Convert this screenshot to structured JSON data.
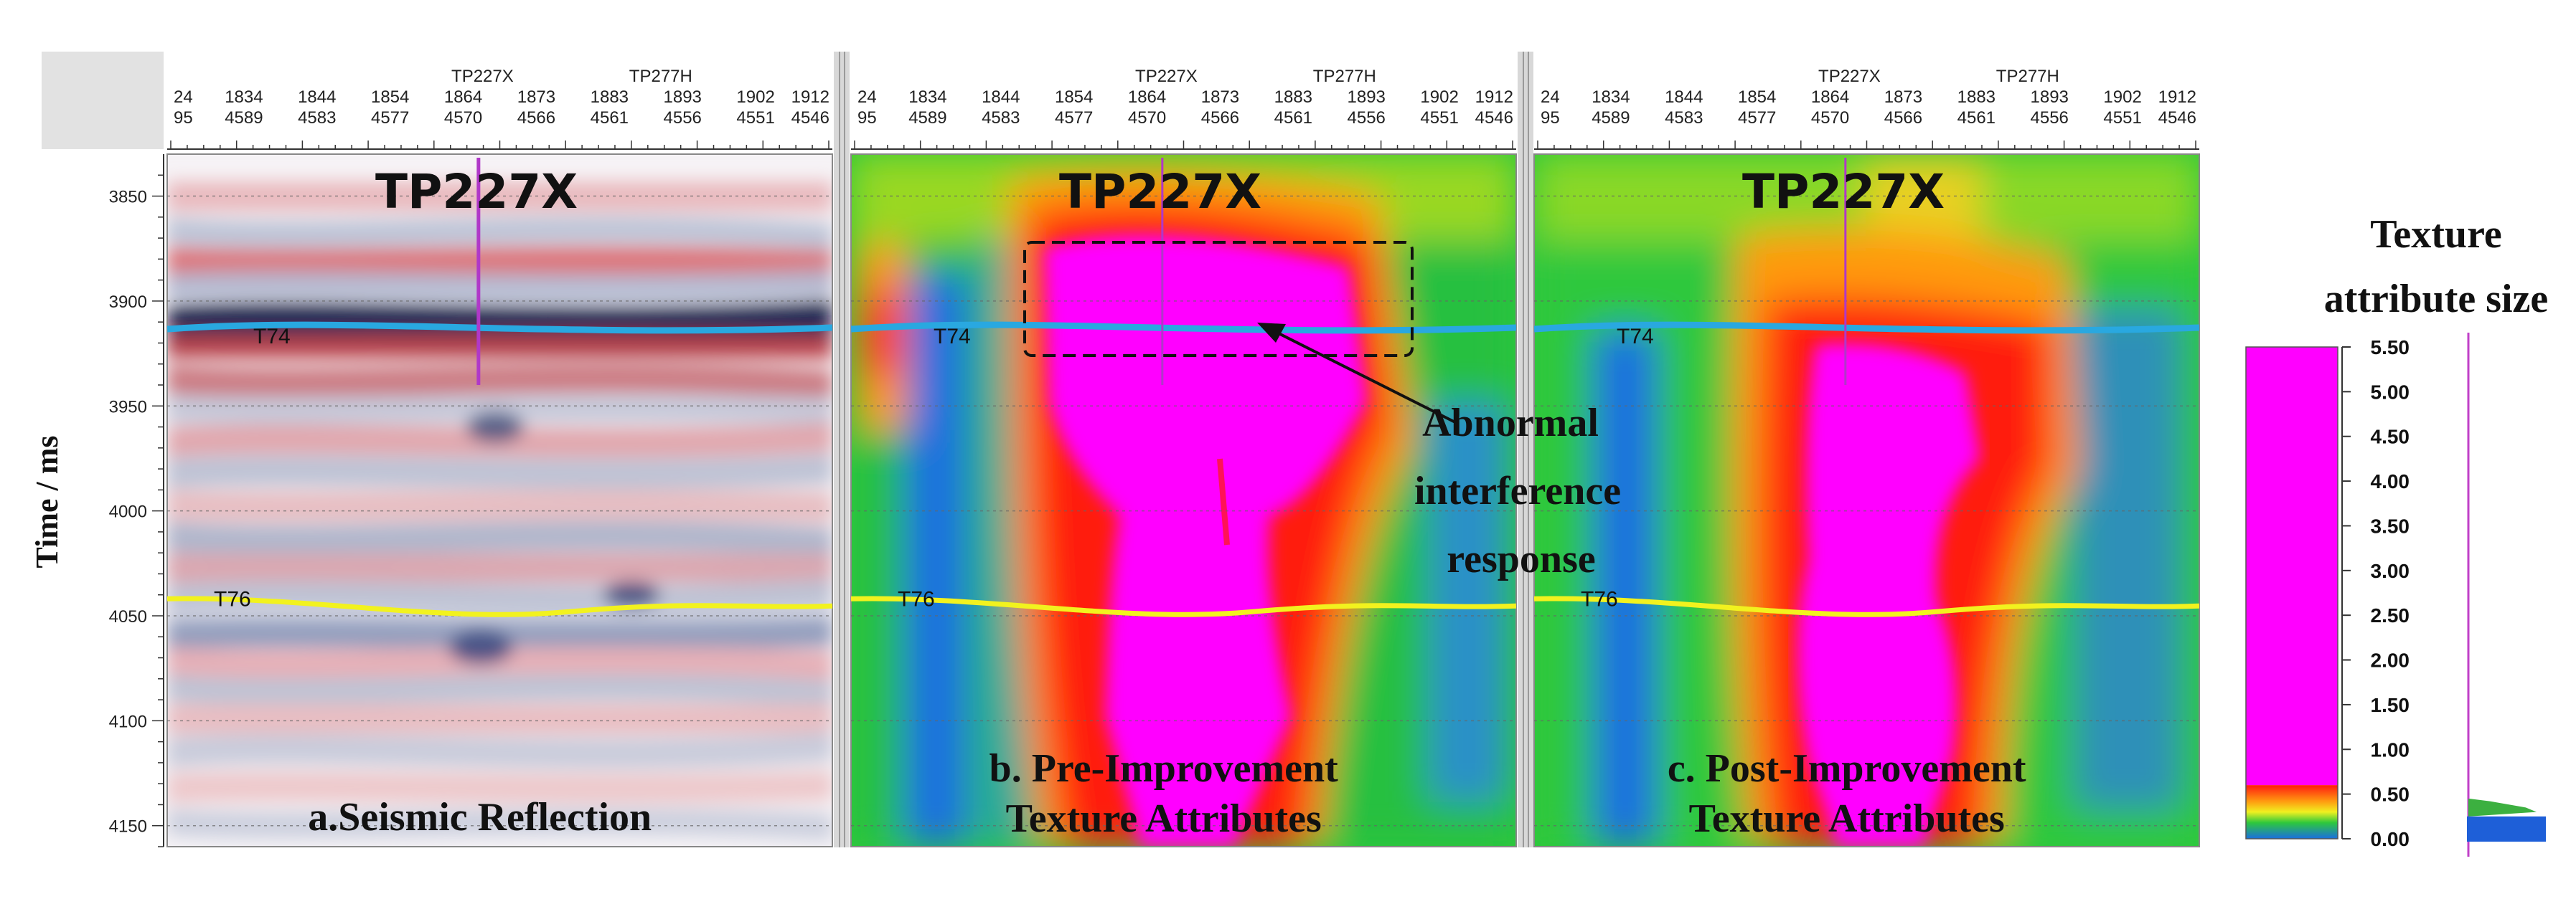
{
  "chart_data": {
    "type": "heatmap",
    "ylabel": "Time / ms",
    "ylim": [
      3830,
      4160
    ],
    "yticks": [
      3850,
      3900,
      3950,
      4000,
      4050,
      4100,
      4150
    ],
    "xticks": [
      {
        "top": "24",
        "bottom": "95"
      },
      {
        "top": "1834",
        "bottom": "4589"
      },
      {
        "top": "1844",
        "bottom": "4583"
      },
      {
        "top": "1854",
        "bottom": "4577"
      },
      {
        "top": "1864",
        "bottom": "4570"
      },
      {
        "top": "1873",
        "bottom": "4566"
      },
      {
        "top": "1883",
        "bottom": "4561"
      },
      {
        "top": "1893",
        "bottom": "4556"
      },
      {
        "top": "1902",
        "bottom": "4551"
      },
      {
        "top": "1912",
        "bottom": "4546"
      }
    ],
    "well_labels": [
      "TP227X",
      "TP277H"
    ],
    "well_name": "TP227X",
    "horizons": [
      {
        "name": "T74",
        "color": "#29a8e0"
      },
      {
        "name": "T76",
        "color": "#f2f21e"
      }
    ],
    "panels": [
      {
        "id": "a",
        "caption": [
          "a.Seismic Reflection"
        ],
        "kind": "seismic"
      },
      {
        "id": "b",
        "caption": [
          "b. Pre-Improvement",
          "Texture Attributes"
        ],
        "kind": "texture-pre"
      },
      {
        "id": "c",
        "caption": [
          "c. Post-Improvement",
          "Texture Attributes"
        ],
        "kind": "texture-post"
      }
    ],
    "annotation": {
      "lines": [
        "Abnormal",
        "interference",
        "response"
      ]
    },
    "colorbar": {
      "title": [
        "Texture",
        "attribute size"
      ],
      "ticks": [
        "5.50",
        "5.00",
        "4.50",
        "4.00",
        "3.50",
        "3.00",
        "2.50",
        "2.00",
        "1.50",
        "1.00",
        "0.50",
        "0.00"
      ],
      "range": [
        0,
        5.5
      ],
      "colors": {
        "magenta": "#ff00ff",
        "red": "#ff1a10",
        "orange": "#ff9a10",
        "yellow": "#f0f020",
        "green": "#2ec83c",
        "blue": "#1a6ee0"
      }
    }
  }
}
